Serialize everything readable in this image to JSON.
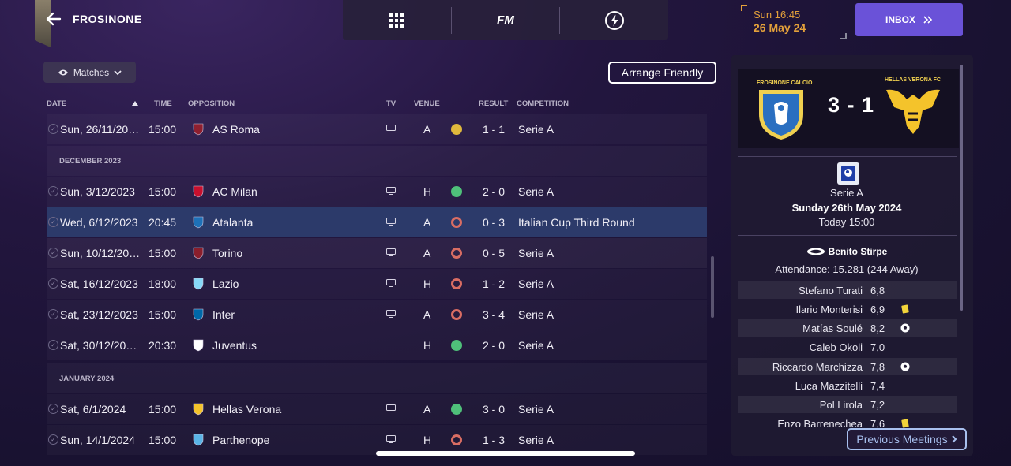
{
  "header": {
    "team_name": "FROSINONE",
    "nav_fm_label": "FM",
    "time": "Sun 16:45",
    "date": "26 May 24",
    "inbox_label": "INBOX"
  },
  "toolbar": {
    "filter_label": "Matches",
    "arrange_friendly_label": "Arrange Friendly"
  },
  "columns": {
    "date": "DATE",
    "time": "TIME",
    "opposition": "OPPOSITION",
    "tv": "TV",
    "venue": "VENUE",
    "result": "RESULT",
    "competition": "COMPETITION"
  },
  "months": [
    "DECEMBER 2023",
    "JANUARY 2024"
  ],
  "fixtures": [
    {
      "date": "Sun, 26/11/20…",
      "time": "15:00",
      "opponent": "AS Roma",
      "tv": true,
      "venue": "A",
      "outcome": "draw",
      "result": "1 - 1",
      "competition": "Serie A",
      "crest": "#8e1f2f"
    },
    {
      "date": "Sun, 3/12/2023",
      "time": "15:00",
      "opponent": "AC Milan",
      "tv": true,
      "venue": "H",
      "outcome": "win",
      "result": "2 - 0",
      "competition": "Serie A",
      "crest": "#c8102e"
    },
    {
      "date": "Wed, 6/12/2023",
      "time": "20:45",
      "opponent": "Atalanta",
      "tv": true,
      "venue": "A",
      "outcome": "loss",
      "result": "0 - 3",
      "competition": "Italian Cup Third Round",
      "crest": "#1e71b8"
    },
    {
      "date": "Sun, 10/12/20…",
      "time": "15:00",
      "opponent": "Torino",
      "tv": true,
      "venue": "A",
      "outcome": "loss",
      "result": "0 - 5",
      "competition": "Serie A",
      "crest": "#8a1e2c"
    },
    {
      "date": "Sat, 16/12/2023",
      "time": "18:00",
      "opponent": "Lazio",
      "tv": true,
      "venue": "H",
      "outcome": "loss",
      "result": "1 - 2",
      "competition": "Serie A",
      "crest": "#87d8f7"
    },
    {
      "date": "Sat, 23/12/2023",
      "time": "15:00",
      "opponent": "Inter",
      "tv": true,
      "venue": "A",
      "outcome": "loss",
      "result": "3 - 4",
      "competition": "Serie A",
      "crest": "#0068a8"
    },
    {
      "date": "Sat, 30/12/20…",
      "time": "20:30",
      "opponent": "Juventus",
      "tv": false,
      "venue": "H",
      "outcome": "win",
      "result": "2 - 0",
      "competition": "Serie A",
      "crest": "#ffffff"
    },
    {
      "date": "Sat, 6/1/2024",
      "time": "15:00",
      "opponent": "Hellas Verona",
      "tv": true,
      "venue": "A",
      "outcome": "win",
      "result": "3 - 0",
      "competition": "Serie A",
      "crest": "#f4c32b"
    },
    {
      "date": "Sun, 14/1/2024",
      "time": "15:00",
      "opponent": "Parthenope",
      "tv": true,
      "venue": "H",
      "outcome": "loss",
      "result": "1 - 3",
      "competition": "Serie A",
      "crest": "#5ab4e6"
    }
  ],
  "match_panel": {
    "home_team": "FROSINONE CALCIO",
    "away_team": "HELLAS VERONA FC",
    "score": "3 - 1",
    "competition": "Serie A",
    "match_date": "Sunday 26th May 2024",
    "match_time": "Today 15:00",
    "stadium": "Benito Stirpe",
    "attendance": "Attendance: 15.281 (244 Away)",
    "previous_meetings_label": "Previous Meetings",
    "players": [
      {
        "name": "Stefano Turati",
        "rating": "6,8",
        "event": ""
      },
      {
        "name": "Ilario Monterisi",
        "rating": "6,9",
        "event": "yellow-card"
      },
      {
        "name": "Matías Soulé",
        "rating": "8,2",
        "event": "goal"
      },
      {
        "name": "Caleb Okoli",
        "rating": "7,0",
        "event": ""
      },
      {
        "name": "Riccardo Marchizza",
        "rating": "7,8",
        "event": "goal"
      },
      {
        "name": "Luca Mazzitelli",
        "rating": "7,4",
        "event": ""
      },
      {
        "name": "Pol Lirola",
        "rating": "7,2",
        "event": ""
      },
      {
        "name": "Enzo Barrenechea",
        "rating": "7,6",
        "event": "yellow-card"
      }
    ]
  },
  "colors": {
    "accent_purple": "#6a52d8",
    "date_orange": "#e3a03a",
    "win_green": "#4fc07a",
    "loss_red": "#d96d63",
    "draw_yellow": "#e0b93c",
    "selected_row": "#2c3a6a"
  }
}
